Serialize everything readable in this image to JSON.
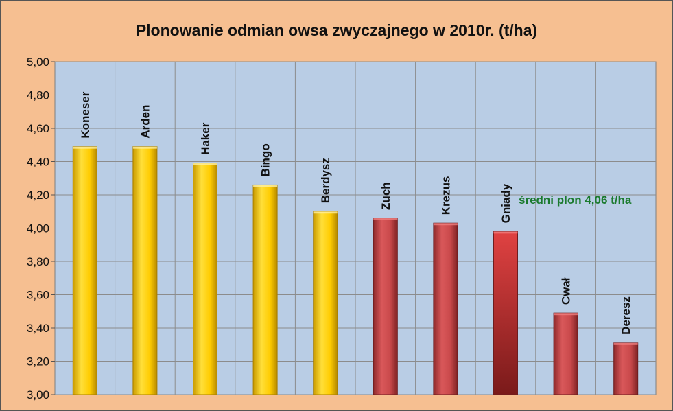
{
  "chart_data": {
    "type": "bar",
    "title": "Plonowanie odmian owsa zwyczajnego w 2010r. (t/ha)",
    "categories": [
      "Koneser",
      "Arden",
      "Haker",
      "Bingo",
      "Berdysz",
      "Zuch",
      "Krezus",
      "Gniady",
      "Cwał",
      "Deresz"
    ],
    "values": [
      4.49,
      4.49,
      4.39,
      4.26,
      4.1,
      4.06,
      4.03,
      3.98,
      3.49,
      3.31
    ],
    "bar_colors": [
      "#ffcc00",
      "#ffcc00",
      "#ffcc00",
      "#ffcc00",
      "#ffcc00",
      "#c9494b",
      "#c9494b",
      "#c9494b",
      "#c9494b",
      "#c9494b"
    ],
    "ylim": [
      3.0,
      5.0
    ],
    "yticks": [
      "3,00",
      "3,20",
      "3,40",
      "3,60",
      "3,80",
      "4,00",
      "4,20",
      "4,40",
      "4,60",
      "4,80",
      "5,00"
    ],
    "grid": true,
    "annotation": "średni plon 4,06 t/ha",
    "annotation_color": "#1b7a2e"
  },
  "colors": {
    "plot_background": "#b9cde5",
    "frame_background": "#f6bf91"
  }
}
